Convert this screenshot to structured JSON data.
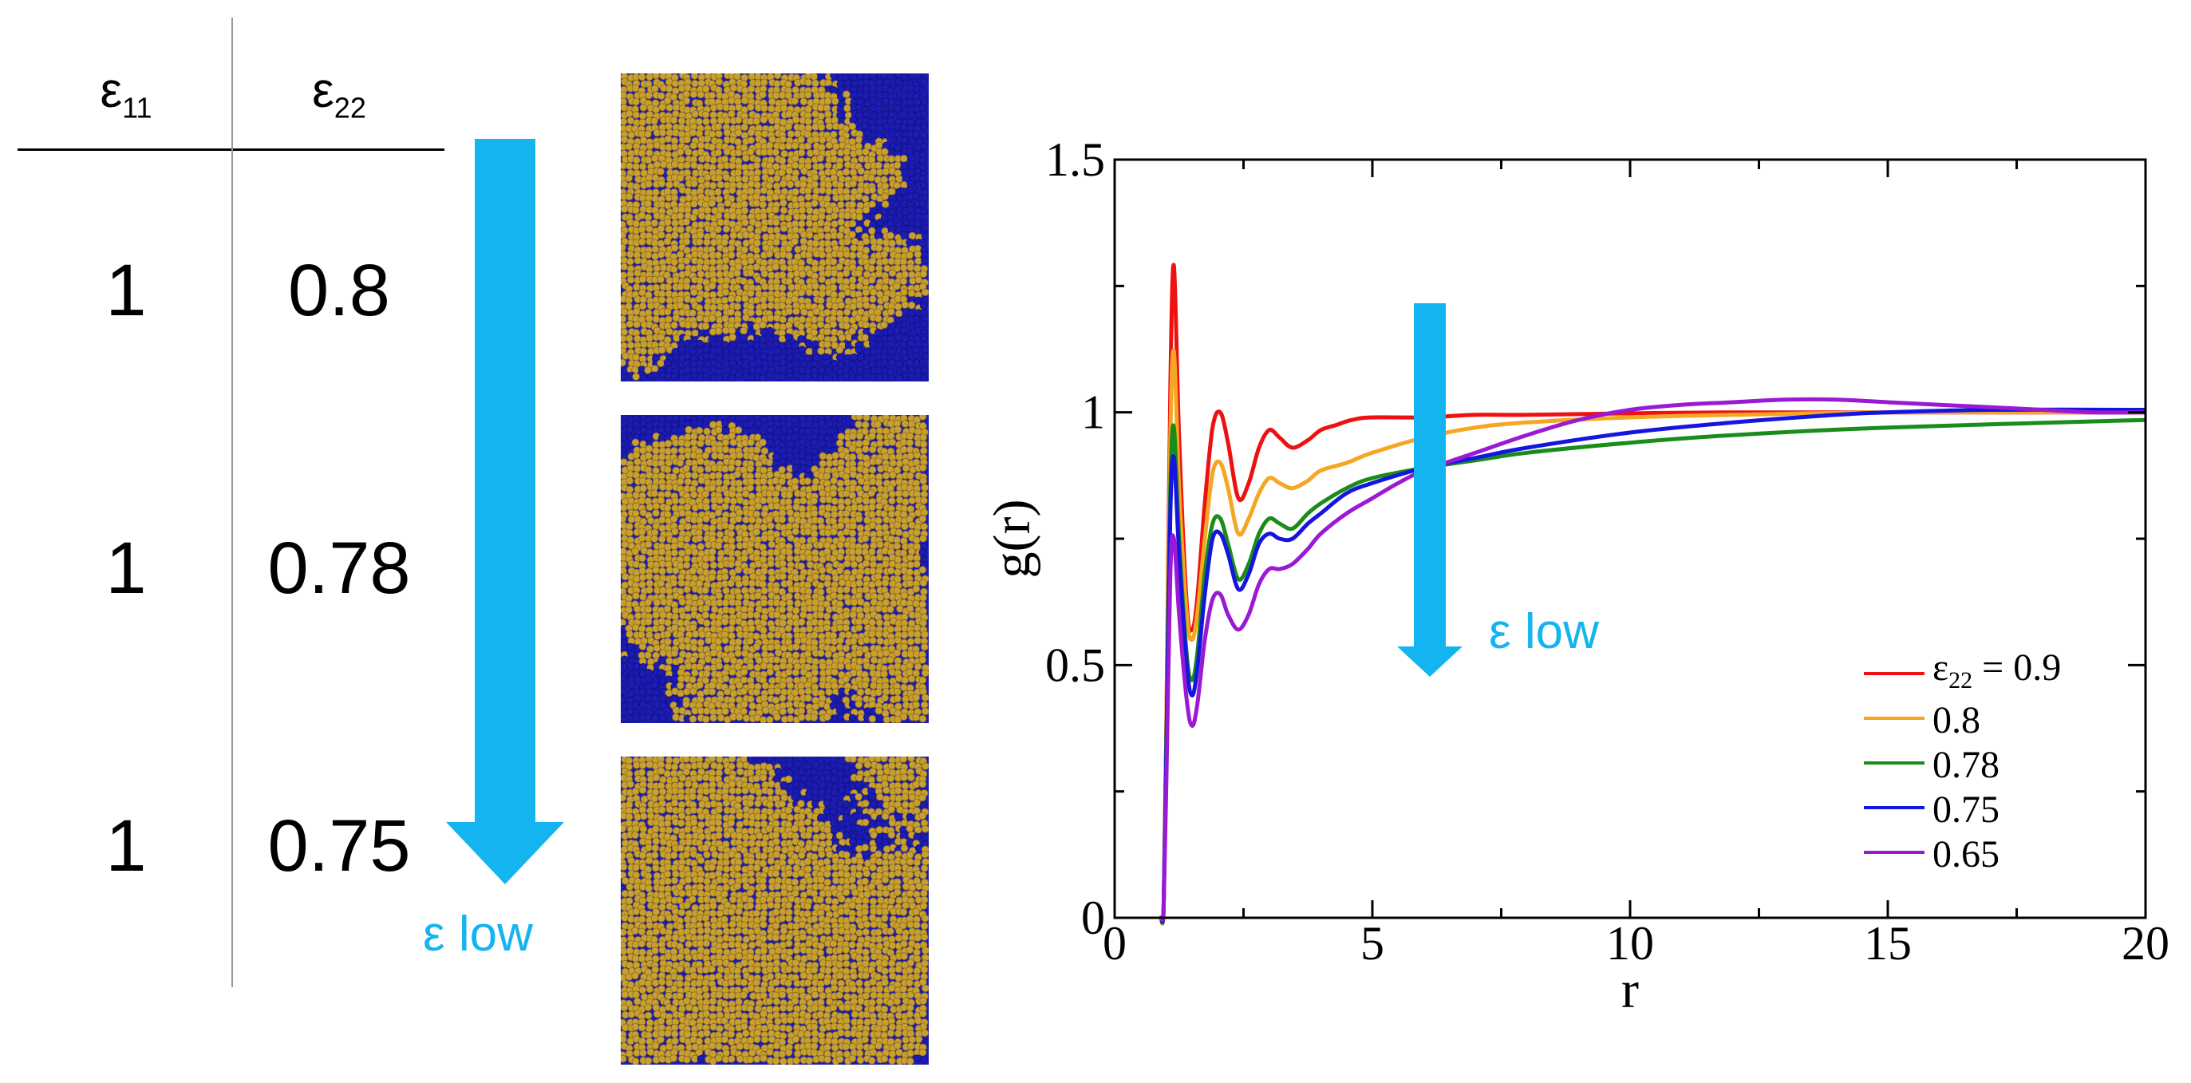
{
  "table": {
    "col1_header": "ε",
    "col1_sub": "11",
    "col2_header": "ε",
    "col2_sub": "22",
    "rows": [
      {
        "e11": "1",
        "e22": "0.8"
      },
      {
        "e11": "1",
        "e22": "0.78"
      },
      {
        "e11": "1",
        "e22": "0.75"
      }
    ]
  },
  "left_arrow_label": "ε low",
  "snapshots": [
    {
      "name": "snapshot-e22-0.8",
      "blue": "#1c1cb4",
      "gold": "#c8a032"
    },
    {
      "name": "snapshot-e22-0.78",
      "blue": "#1c1cb4",
      "gold": "#c8a032"
    },
    {
      "name": "snapshot-e22-0.75",
      "blue": "#1c1cb4",
      "gold": "#c8a032"
    }
  ],
  "colors": {
    "arrow": "#14b4f0"
  },
  "chart_data": {
    "type": "line",
    "xlabel": "r",
    "ylabel": "g(r)",
    "xlim": [
      0,
      20
    ],
    "ylim": [
      0,
      1.5
    ],
    "xticks": [
      "0",
      "5",
      "10",
      "15",
      "20"
    ],
    "yticks": [
      "0",
      "0.5",
      "1",
      "1.5"
    ],
    "arrow_label": "ε low",
    "legend": {
      "placement": "bottom-right",
      "first_prefix": "ε",
      "first_sub": "22",
      "first_suffix": " = 0.9"
    },
    "series": [
      {
        "name": "0.9",
        "color": "#ee1111",
        "x": [
          0.9,
          0.95,
          1.0,
          1.08,
          1.15,
          1.25,
          1.4,
          1.5,
          1.6,
          1.75,
          1.9,
          2.05,
          2.2,
          2.4,
          2.6,
          2.8,
          3.0,
          3.2,
          3.45,
          3.75,
          4.0,
          4.3,
          4.6,
          5.0,
          6,
          7,
          8,
          10,
          12,
          15,
          20
        ],
        "y": [
          0,
          0.02,
          0.35,
          1.05,
          1.29,
          0.95,
          0.62,
          0.57,
          0.63,
          0.82,
          0.97,
          1.0,
          0.94,
          0.83,
          0.86,
          0.93,
          0.965,
          0.95,
          0.93,
          0.945,
          0.965,
          0.975,
          0.985,
          0.99,
          0.99,
          0.995,
          0.995,
          0.998,
          1.0,
          1.0,
          1.0
        ]
      },
      {
        "name": "0.8",
        "color": "#f5a623",
        "x": [
          0.9,
          0.95,
          1.0,
          1.08,
          1.15,
          1.25,
          1.4,
          1.5,
          1.6,
          1.75,
          1.9,
          2.05,
          2.2,
          2.4,
          2.6,
          2.8,
          3.0,
          3.2,
          3.45,
          3.75,
          4.0,
          4.5,
          5.0,
          6,
          7,
          8,
          10,
          12,
          15,
          20
        ],
        "y": [
          0,
          0.02,
          0.35,
          0.95,
          1.12,
          0.85,
          0.6,
          0.55,
          0.6,
          0.75,
          0.88,
          0.9,
          0.85,
          0.76,
          0.79,
          0.84,
          0.87,
          0.86,
          0.85,
          0.865,
          0.885,
          0.9,
          0.92,
          0.95,
          0.97,
          0.98,
          0.99,
          0.995,
          1.0,
          1.0
        ]
      },
      {
        "name": "0.78",
        "color": "#1a8c1a",
        "x": [
          0.9,
          0.95,
          1.0,
          1.08,
          1.15,
          1.25,
          1.4,
          1.5,
          1.6,
          1.75,
          1.9,
          2.05,
          2.2,
          2.4,
          2.6,
          2.8,
          3.0,
          3.2,
          3.45,
          3.75,
          4.0,
          4.5,
          5.0,
          6,
          7,
          8,
          10,
          12,
          15,
          20
        ],
        "y": [
          0,
          0.02,
          0.33,
          0.85,
          0.97,
          0.75,
          0.52,
          0.47,
          0.52,
          0.68,
          0.78,
          0.79,
          0.74,
          0.67,
          0.7,
          0.76,
          0.79,
          0.78,
          0.77,
          0.8,
          0.82,
          0.85,
          0.87,
          0.89,
          0.905,
          0.92,
          0.94,
          0.955,
          0.97,
          0.985
        ]
      },
      {
        "name": "0.75",
        "color": "#1515e0",
        "x": [
          0.9,
          0.95,
          1.0,
          1.08,
          1.15,
          1.25,
          1.4,
          1.5,
          1.6,
          1.75,
          1.9,
          2.05,
          2.2,
          2.4,
          2.6,
          2.8,
          3.0,
          3.2,
          3.45,
          3.75,
          4.0,
          4.5,
          5.0,
          6,
          7,
          8,
          10,
          12,
          14,
          15,
          17,
          20
        ],
        "y": [
          0,
          0.02,
          0.3,
          0.8,
          0.91,
          0.72,
          0.5,
          0.44,
          0.49,
          0.64,
          0.75,
          0.76,
          0.72,
          0.65,
          0.68,
          0.74,
          0.76,
          0.75,
          0.75,
          0.78,
          0.8,
          0.84,
          0.86,
          0.89,
          0.91,
          0.93,
          0.96,
          0.98,
          0.995,
          1.0,
          1.005,
          1.005
        ]
      },
      {
        "name": "0.65",
        "color": "#9a1ad4",
        "x": [
          0.9,
          0.95,
          1.0,
          1.08,
          1.15,
          1.25,
          1.4,
          1.5,
          1.6,
          1.75,
          1.9,
          2.05,
          2.2,
          2.4,
          2.6,
          2.8,
          3.0,
          3.2,
          3.45,
          3.75,
          4.0,
          4.5,
          5.0,
          5.5,
          6,
          7,
          8,
          9,
          10,
          11,
          12,
          13,
          14,
          15,
          16,
          17,
          18,
          19,
          20
        ],
        "y": [
          0,
          0.02,
          0.25,
          0.68,
          0.75,
          0.6,
          0.43,
          0.38,
          0.42,
          0.55,
          0.63,
          0.64,
          0.6,
          0.57,
          0.6,
          0.66,
          0.69,
          0.69,
          0.7,
          0.73,
          0.76,
          0.8,
          0.83,
          0.86,
          0.885,
          0.92,
          0.955,
          0.985,
          1.005,
          1.015,
          1.02,
          1.025,
          1.025,
          1.02,
          1.015,
          1.01,
          1.005,
          1.0,
          1.0
        ]
      }
    ]
  }
}
